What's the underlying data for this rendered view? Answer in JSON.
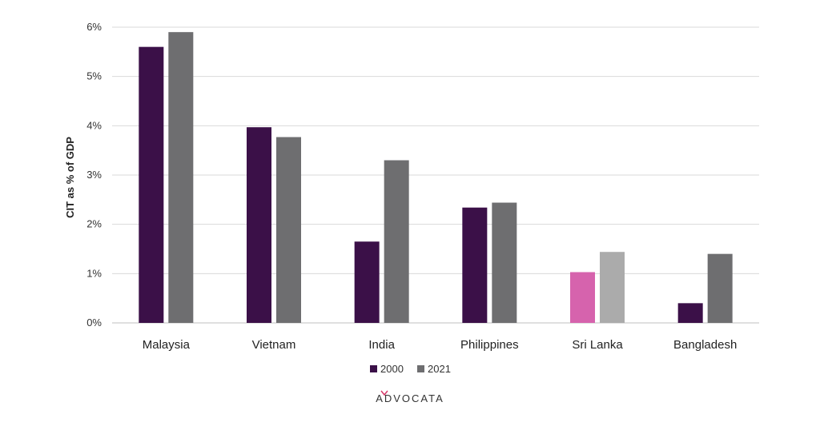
{
  "chart_data": {
    "type": "bar",
    "ylabel": "CIT as % of GDP",
    "xlabel": "",
    "title": "",
    "ylim": [
      0,
      6
    ],
    "y_ticks": [
      "0%",
      "1%",
      "2%",
      "3%",
      "4%",
      "5%",
      "6%"
    ],
    "grid": true,
    "legend_position": "bottom",
    "categories": [
      "Malaysia",
      "Vietnam",
      "India",
      "Philippines",
      "Sri Lanka",
      "Bangladesh"
    ],
    "series": [
      {
        "name": "2000",
        "values": [
          5.6,
          3.97,
          1.65,
          2.34,
          1.03,
          0.4
        ],
        "color": "#3b1048"
      },
      {
        "name": "2021",
        "values": [
          5.9,
          3.77,
          3.3,
          2.44,
          1.44,
          1.4
        ],
        "color": "#6e6e70"
      }
    ],
    "highlight": {
      "category": "Sri Lanka",
      "colors": [
        "#d663ad",
        "#ababab"
      ]
    }
  },
  "brand": {
    "logo_text": "ADVOCATA",
    "logo_accent": "#d63a6a"
  }
}
